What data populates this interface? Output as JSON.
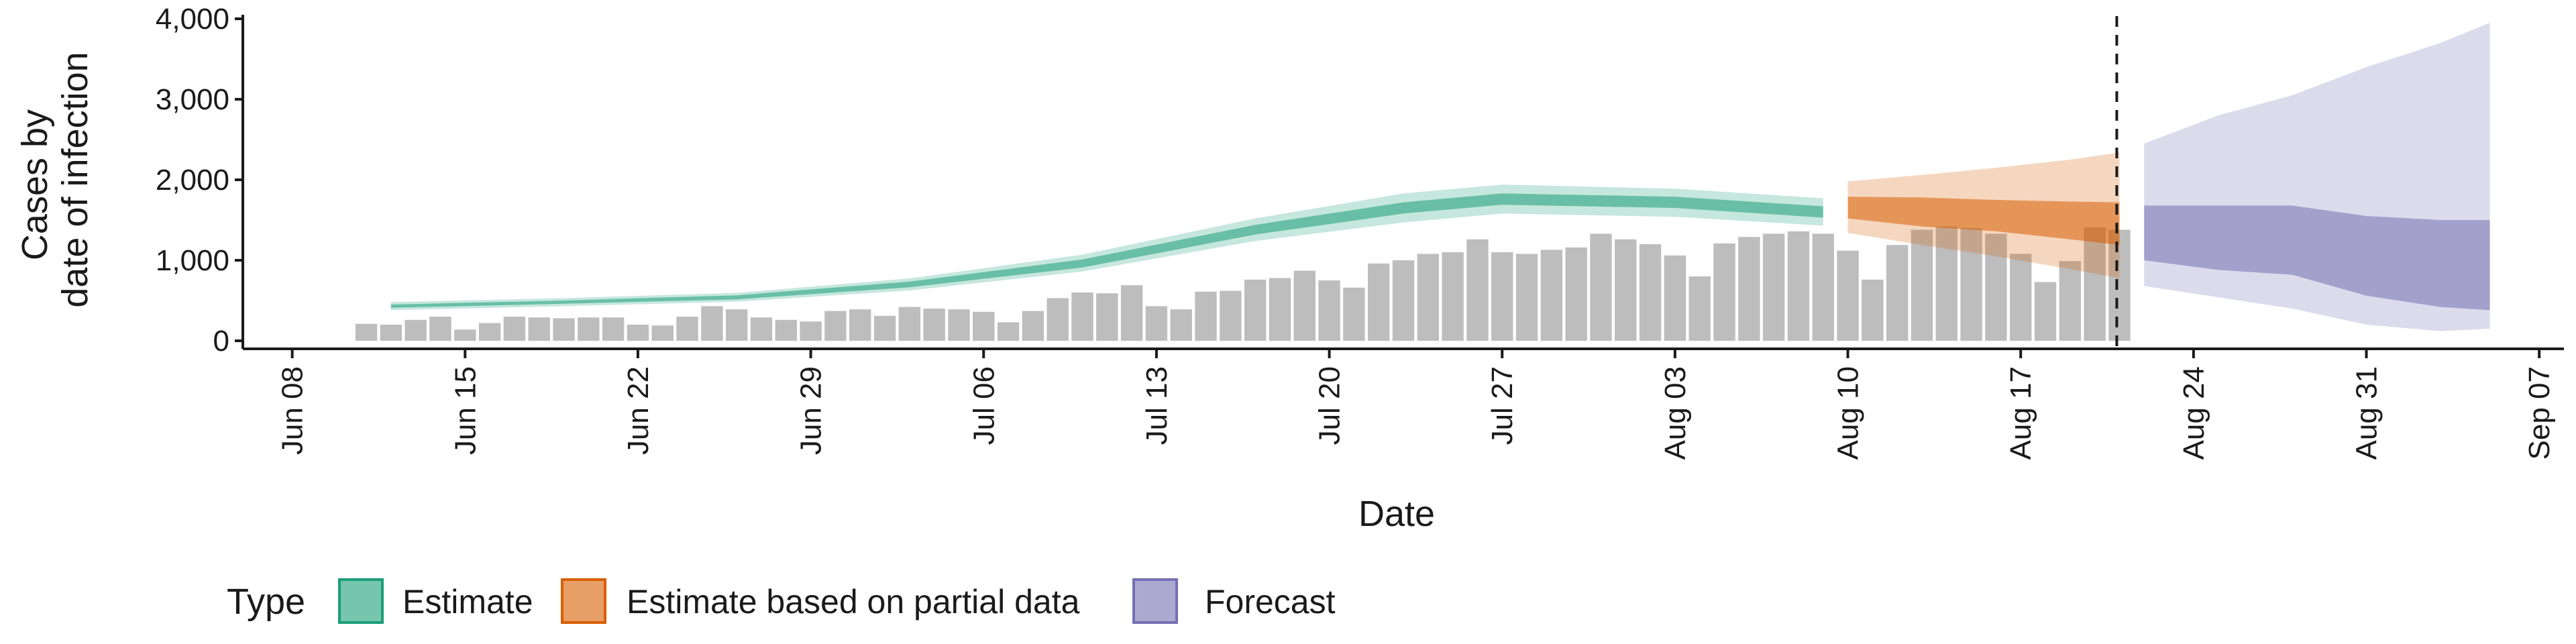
{
  "chart_data": {
    "type": "bar",
    "xlabel": "Date",
    "ylabel_lines": [
      "Cases by",
      "date of infection"
    ],
    "ylim": [
      0,
      4000
    ],
    "y_ticks": [
      0,
      1000,
      2000,
      3000,
      4000
    ],
    "y_tick_labels": [
      "0",
      "1,000",
      "2,000",
      "3,000",
      "4,000"
    ],
    "xlim": [
      "2020-06-06",
      "2020-09-08"
    ],
    "x_ticks": [
      "2020-06-08",
      "2020-06-15",
      "2020-06-22",
      "2020-06-29",
      "2020-07-06",
      "2020-07-13",
      "2020-07-20",
      "2020-07-27",
      "2020-08-03",
      "2020-08-10",
      "2020-08-17",
      "2020-08-24",
      "2020-08-31",
      "2020-09-07"
    ],
    "x_tick_labels": [
      "Jun 08",
      "Jun 15",
      "Jun 22",
      "Jun 29",
      "Jul 06",
      "Jul 13",
      "Jul 20",
      "Jul 27",
      "Aug 03",
      "Aug 10",
      "Aug 17",
      "Aug 24",
      "Aug 31",
      "Sep 07"
    ],
    "forecast_line_date": "2020-08-21",
    "bars": {
      "color": "#bdbdbd",
      "dates": [
        "2020-06-11",
        "2020-06-12",
        "2020-06-13",
        "2020-06-14",
        "2020-06-15",
        "2020-06-16",
        "2020-06-17",
        "2020-06-18",
        "2020-06-19",
        "2020-06-20",
        "2020-06-21",
        "2020-06-22",
        "2020-06-23",
        "2020-06-24",
        "2020-06-25",
        "2020-06-26",
        "2020-06-27",
        "2020-06-28",
        "2020-06-29",
        "2020-06-30",
        "2020-07-01",
        "2020-07-02",
        "2020-07-03",
        "2020-07-04",
        "2020-07-05",
        "2020-07-06",
        "2020-07-07",
        "2020-07-08",
        "2020-07-09",
        "2020-07-10",
        "2020-07-11",
        "2020-07-12",
        "2020-07-13",
        "2020-07-14",
        "2020-07-15",
        "2020-07-16",
        "2020-07-17",
        "2020-07-18",
        "2020-07-19",
        "2020-07-20",
        "2020-07-21",
        "2020-07-22",
        "2020-07-23",
        "2020-07-24",
        "2020-07-25",
        "2020-07-26",
        "2020-07-27",
        "2020-07-28",
        "2020-07-29",
        "2020-07-30",
        "2020-07-31",
        "2020-08-01",
        "2020-08-02",
        "2020-08-03",
        "2020-08-04",
        "2020-08-05",
        "2020-08-06",
        "2020-08-07",
        "2020-08-08",
        "2020-08-09",
        "2020-08-10",
        "2020-08-11",
        "2020-08-12",
        "2020-08-13",
        "2020-08-14",
        "2020-08-15",
        "2020-08-16",
        "2020-08-17",
        "2020-08-18",
        "2020-08-19",
        "2020-08-20",
        "2020-08-21"
      ],
      "values": [
        210,
        200,
        260,
        300,
        140,
        220,
        300,
        290,
        280,
        290,
        290,
        200,
        190,
        300,
        430,
        390,
        290,
        260,
        240,
        370,
        390,
        310,
        420,
        400,
        390,
        360,
        230,
        370,
        530,
        600,
        590,
        690,
        430,
        390,
        610,
        620,
        760,
        780,
        870,
        750,
        660,
        960,
        1000,
        1080,
        1100,
        1260,
        1100,
        1080,
        1130,
        1160,
        1330,
        1260,
        1200,
        1060,
        800,
        1210,
        1290,
        1330,
        1360,
        1330,
        1120,
        760,
        1190,
        1380,
        1420,
        1400,
        1330,
        1080,
        730,
        990,
        1410,
        1380
      ]
    },
    "series": [
      {
        "name": "Estimate",
        "color": "#1b9e77",
        "dates": [
          "2020-06-12",
          "2020-06-19",
          "2020-06-26",
          "2020-07-03",
          "2020-07-10",
          "2020-07-17",
          "2020-07-23",
          "2020-07-27",
          "2020-08-03",
          "2020-08-09"
        ],
        "median": [
          430,
          480,
          540,
          700,
          960,
          1380,
          1650,
          1760,
          1720,
          1600
        ],
        "ci50": [
          [
            410,
            450
          ],
          [
            460,
            500
          ],
          [
            515,
            565
          ],
          [
            665,
            735
          ],
          [
            910,
            1010
          ],
          [
            1320,
            1440
          ],
          [
            1580,
            1720
          ],
          [
            1690,
            1830
          ],
          [
            1650,
            1790
          ],
          [
            1530,
            1670
          ]
        ],
        "ci90": [
          [
            380,
            480
          ],
          [
            430,
            530
          ],
          [
            485,
            595
          ],
          [
            625,
            775
          ],
          [
            860,
            1070
          ],
          [
            1240,
            1520
          ],
          [
            1470,
            1830
          ],
          [
            1580,
            1940
          ],
          [
            1540,
            1890
          ],
          [
            1430,
            1770
          ]
        ]
      },
      {
        "name": "Estimate based on partial data",
        "color": "#d95f02",
        "dates": [
          "2020-08-10",
          "2020-08-13",
          "2020-08-16",
          "2020-08-19",
          "2020-08-21"
        ],
        "median": [
          1650,
          1600,
          1560,
          1500,
          1470
        ],
        "ci50": [
          [
            1520,
            1790
          ],
          [
            1420,
            1780
          ],
          [
            1360,
            1750
          ],
          [
            1260,
            1730
          ],
          [
            1190,
            1720
          ]
        ],
        "ci90": [
          [
            1340,
            1980
          ],
          [
            1190,
            2060
          ],
          [
            1050,
            2150
          ],
          [
            890,
            2250
          ],
          [
            780,
            2340
          ]
        ]
      },
      {
        "name": "Forecast",
        "color": "#7570b3",
        "dates": [
          "2020-08-22",
          "2020-08-25",
          "2020-08-28",
          "2020-08-31",
          "2020-09-03",
          "2020-09-05"
        ],
        "median": [
          1350,
          1320,
          1300,
          1100,
          950,
          930
        ],
        "ci50": [
          [
            1000,
            1680
          ],
          [
            880,
            1680
          ],
          [
            820,
            1680
          ],
          [
            560,
            1550
          ],
          [
            420,
            1500
          ],
          [
            380,
            1500
          ]
        ],
        "ci90": [
          [
            680,
            2450
          ],
          [
            540,
            2800
          ],
          [
            400,
            3050
          ],
          [
            200,
            3400
          ],
          [
            120,
            3700
          ],
          [
            150,
            3950
          ]
        ]
      }
    ],
    "legend": {
      "title": "Type",
      "position": "bottom",
      "items": [
        {
          "label": "Estimate",
          "color": "#1b9e77"
        },
        {
          "label": "Estimate based on partial data",
          "color": "#d95f02"
        },
        {
          "label": "Forecast",
          "color": "#7570b3"
        }
      ]
    },
    "grid": false
  }
}
